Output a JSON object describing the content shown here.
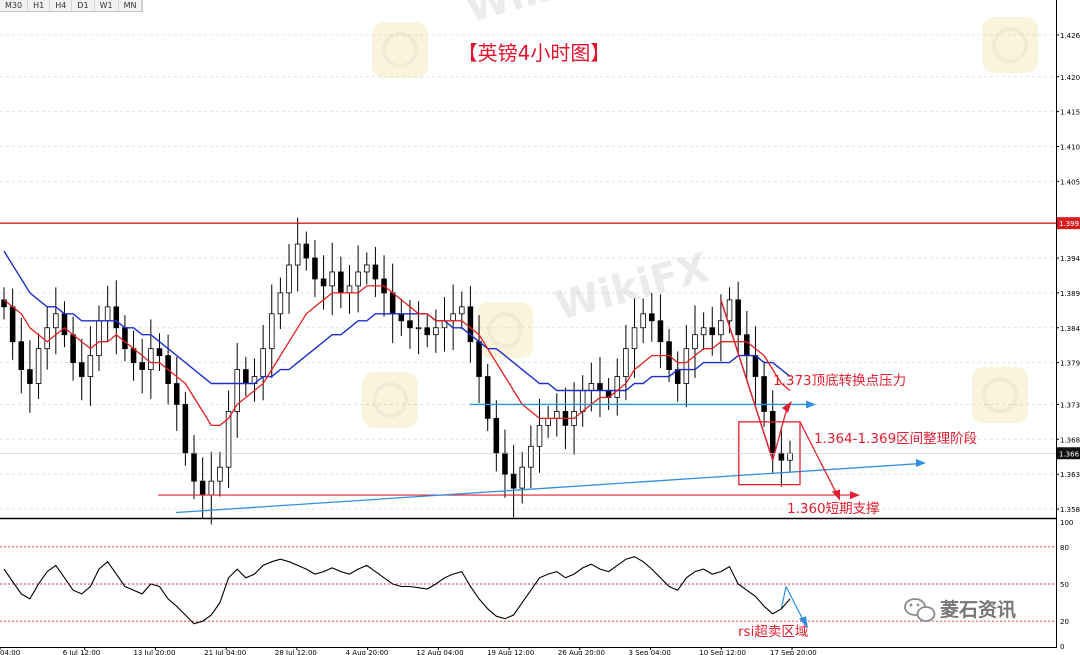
{
  "timeframes": [
    "M30",
    "H1",
    "H4",
    "D1",
    "W1",
    "MN"
  ],
  "title": "【英镑4小时图】",
  "colors": {
    "candle": "#000000",
    "ma_fast": "#e02020",
    "ma_slow": "#1e2fc8",
    "annotation_red": "#e02030",
    "annotation_blue": "#2f8fe0",
    "resistance": "#d81e1e",
    "rsi_line": "#000000",
    "rsi_level": "#e03030",
    "current_price_tag": "#d81e1e"
  },
  "price_axis": {
    "labels": [
      "1.426",
      "1.420",
      "1.415",
      "1.410",
      "1.405",
      "1.399",
      "1.394",
      "1.389",
      "1.384",
      "1.379",
      "1.373",
      "1.368",
      "1.366",
      "1.363",
      "1.358"
    ],
    "resistance_tag": "1.399",
    "current_tag": "1.366"
  },
  "rsi_axis": {
    "labels": [
      "100",
      "80",
      "50",
      "20",
      "0"
    ]
  },
  "time_axis": {
    "labels": [
      "04:00",
      "6 Jul 12:00",
      "13 Jul 20:00",
      "21 Jul 04:00",
      "28 Jul 12:00",
      "4 Aug 20:00",
      "12 Aug 04:00",
      "19 Aug 12:00",
      "26 Aug 20:00",
      "3 Sep 04:00",
      "10 Sep 12:00",
      "17 Sep 20:00"
    ]
  },
  "annotations": {
    "resistance_text": "1.373顶底转换点压力",
    "range_text": "1.364-1.369区间整理阶段",
    "support_text": "1.360短期支撑",
    "rsi_text": "rsi超卖区域"
  },
  "watermark": "WikiFX",
  "brand": {
    "name": "菱石资讯",
    "icon": "wechat-icon"
  },
  "chart_data": {
    "type": "line",
    "title": "【英镑4小时图】",
    "instrument": "GBP 4H",
    "price_range": [
      1.357,
      1.429
    ],
    "x_time_labels": [
      "04:00",
      "6 Jul 12:00",
      "13 Jul 20:00",
      "21 Jul 04:00",
      "28 Jul 12:00",
      "4 Aug 20:00",
      "12 Aug 04:00",
      "19 Aug 12:00",
      "26 Aug 20:00",
      "3 Sep 04:00",
      "10 Sep 12:00",
      "17 Sep 20:00"
    ],
    "price_close": [
      1.387,
      1.382,
      1.378,
      1.376,
      1.381,
      1.384,
      1.386,
      1.383,
      1.379,
      1.377,
      1.38,
      1.385,
      1.387,
      1.384,
      1.381,
      1.379,
      1.378,
      1.381,
      1.38,
      1.376,
      1.373,
      1.366,
      1.362,
      1.36,
      1.362,
      1.364,
      1.372,
      1.378,
      1.376,
      1.377,
      1.381,
      1.386,
      1.389,
      1.393,
      1.396,
      1.394,
      1.391,
      1.39,
      1.392,
      1.389,
      1.39,
      1.392,
      1.393,
      1.391,
      1.389,
      1.386,
      1.385,
      1.384,
      1.384,
      1.383,
      1.384,
      1.385,
      1.386,
      1.387,
      1.382,
      1.377,
      1.371,
      1.366,
      1.363,
      1.361,
      1.364,
      1.367,
      1.37,
      1.371,
      1.372,
      1.37,
      1.372,
      1.375,
      1.376,
      1.375,
      1.374,
      1.377,
      1.381,
      1.384,
      1.386,
      1.385,
      1.382,
      1.378,
      1.376,
      1.381,
      1.383,
      1.384,
      1.383,
      1.385,
      1.388,
      1.383,
      1.38,
      1.377,
      1.372,
      1.366,
      1.365,
      1.366
    ],
    "ma_fast": [
      1.388,
      1.387,
      1.386,
      1.384,
      1.383,
      1.382,
      1.383,
      1.384,
      1.383,
      1.382,
      1.381,
      1.382,
      1.382,
      1.383,
      1.382,
      1.381,
      1.38,
      1.379,
      1.379,
      1.378,
      1.377,
      1.376,
      1.374,
      1.372,
      1.37,
      1.37,
      1.371,
      1.373,
      1.374,
      1.375,
      1.376,
      1.378,
      1.38,
      1.382,
      1.384,
      1.386,
      1.387,
      1.388,
      1.389,
      1.389,
      1.389,
      1.389,
      1.39,
      1.39,
      1.39,
      1.389,
      1.388,
      1.387,
      1.386,
      1.386,
      1.385,
      1.385,
      1.385,
      1.385,
      1.384,
      1.383,
      1.381,
      1.379,
      1.377,
      1.375,
      1.373,
      1.372,
      1.371,
      1.371,
      1.371,
      1.371,
      1.371,
      1.372,
      1.373,
      1.374,
      1.374,
      1.375,
      1.376,
      1.378,
      1.379,
      1.38,
      1.38,
      1.38,
      1.379,
      1.379,
      1.38,
      1.381,
      1.381,
      1.382,
      1.382,
      1.382,
      1.382,
      1.381,
      1.38,
      1.378,
      1.376,
      1.375
    ],
    "ma_slow": [
      1.395,
      1.393,
      1.391,
      1.389,
      1.388,
      1.387,
      1.387,
      1.386,
      1.386,
      1.385,
      1.385,
      1.385,
      1.385,
      1.385,
      1.384,
      1.384,
      1.383,
      1.383,
      1.382,
      1.381,
      1.38,
      1.379,
      1.378,
      1.377,
      1.376,
      1.376,
      1.376,
      1.376,
      1.376,
      1.376,
      1.377,
      1.377,
      1.378,
      1.378,
      1.379,
      1.38,
      1.381,
      1.382,
      1.383,
      1.383,
      1.384,
      1.385,
      1.385,
      1.386,
      1.386,
      1.386,
      1.386,
      1.386,
      1.386,
      1.386,
      1.385,
      1.385,
      1.384,
      1.384,
      1.383,
      1.382,
      1.381,
      1.381,
      1.38,
      1.379,
      1.378,
      1.377,
      1.376,
      1.376,
      1.375,
      1.375,
      1.375,
      1.375,
      1.375,
      1.375,
      1.375,
      1.375,
      1.375,
      1.376,
      1.376,
      1.377,
      1.377,
      1.377,
      1.378,
      1.378,
      1.378,
      1.379,
      1.379,
      1.379,
      1.379,
      1.38,
      1.38,
      1.38,
      1.379,
      1.379,
      1.378,
      1.377
    ],
    "rsi": [
      62,
      52,
      42,
      38,
      50,
      60,
      65,
      55,
      45,
      42,
      48,
      62,
      68,
      58,
      48,
      45,
      42,
      50,
      48,
      38,
      32,
      25,
      18,
      20,
      25,
      35,
      55,
      62,
      55,
      58,
      65,
      68,
      70,
      68,
      65,
      62,
      58,
      60,
      63,
      60,
      58,
      62,
      65,
      60,
      55,
      50,
      48,
      48,
      47,
      46,
      50,
      55,
      58,
      60,
      48,
      38,
      30,
      24,
      22,
      25,
      35,
      45,
      55,
      58,
      60,
      55,
      58,
      63,
      66,
      62,
      60,
      65,
      70,
      72,
      68,
      62,
      55,
      48,
      45,
      55,
      60,
      62,
      58,
      60,
      64,
      50,
      45,
      40,
      32,
      26,
      30,
      38
    ],
    "rsi_levels": [
      80,
      50,
      20
    ],
    "rsi_range": [
      0,
      100
    ],
    "resistance_level": 1.399,
    "current_price": 1.366,
    "support_level": 1.36,
    "neckline_level": 1.373,
    "range_zone": [
      1.364,
      1.369
    ]
  }
}
